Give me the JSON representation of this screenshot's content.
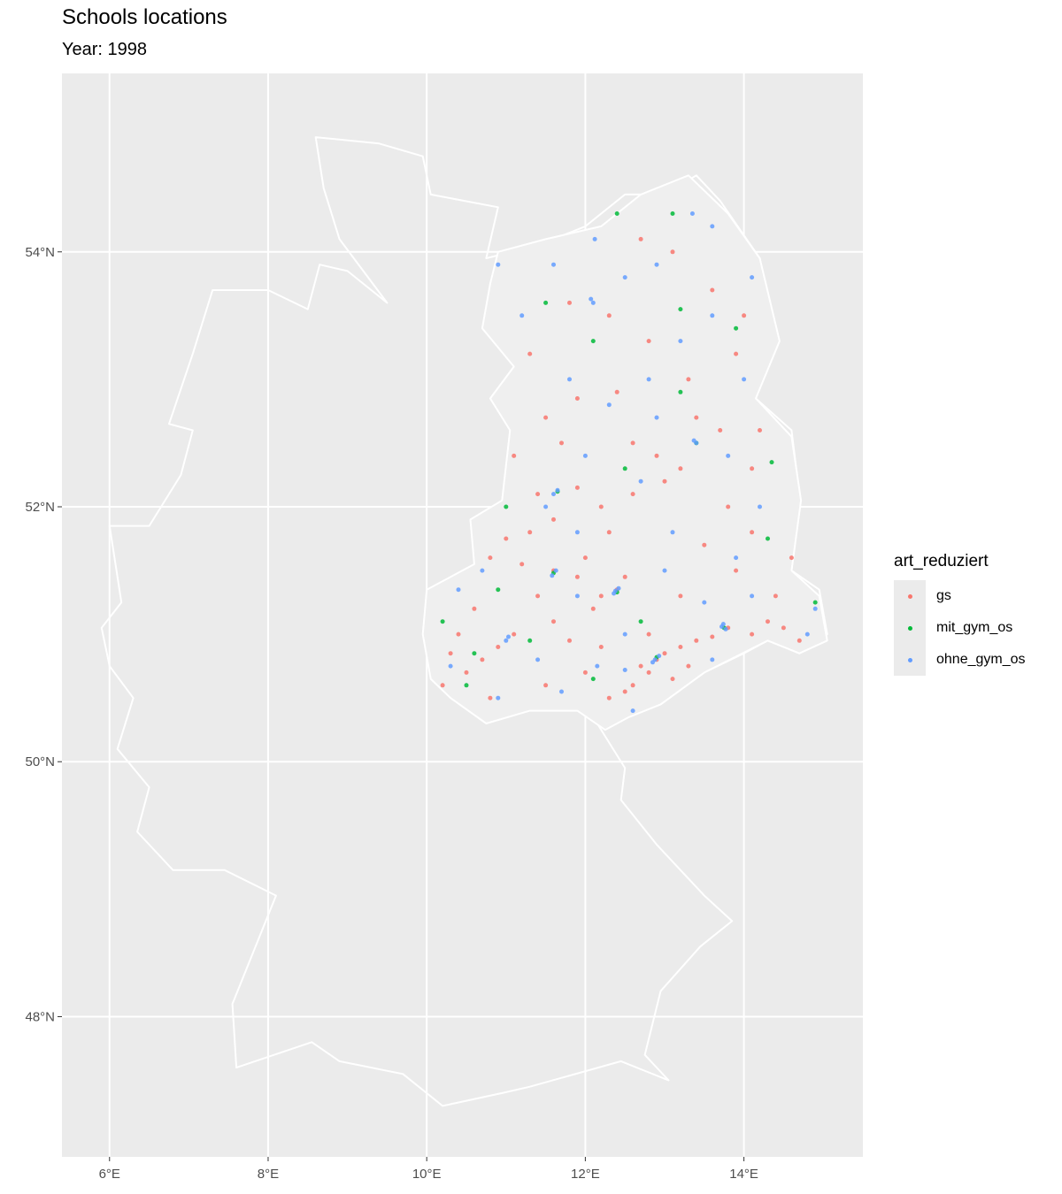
{
  "title": "Schools locations",
  "subtitle": "Year: 1998",
  "legend": {
    "title": "art_reduziert",
    "items": [
      {
        "key": "gs",
        "label": "gs",
        "color": "#F8766D"
      },
      {
        "key": "mit_gym_os",
        "label": "mit_gym_os",
        "color": "#00BA38"
      },
      {
        "key": "ohne_gym_os",
        "label": "ohne_gym_os",
        "color": "#619CFF"
      }
    ]
  },
  "chart_data": {
    "type": "scatter",
    "title": "Schools locations",
    "subtitle": "Year: 1998",
    "xlim": [
      5.4,
      15.5
    ],
    "ylim": [
      46.9,
      55.4
    ],
    "x_ticks": [
      {
        "value": 6,
        "label": "6°E"
      },
      {
        "value": 8,
        "label": "8°E"
      },
      {
        "value": 10,
        "label": "10°E"
      },
      {
        "value": 12,
        "label": "12°E"
      },
      {
        "value": 14,
        "label": "14°E"
      }
    ],
    "y_ticks": [
      {
        "value": 48,
        "label": "48°N"
      },
      {
        "value": 50,
        "label": "50°N"
      },
      {
        "value": 52,
        "label": "52°N"
      },
      {
        "value": 54,
        "label": "54°N"
      }
    ],
    "grid": true,
    "legend_position": "right",
    "background_color": "#EBEBEB",
    "grid_color": "#FFFFFF",
    "boundary_color": "#FFFFFF",
    "germany_outline": [
      [
        6.0,
        51.85
      ],
      [
        6.5,
        51.85
      ],
      [
        6.9,
        52.25
      ],
      [
        7.05,
        52.6
      ],
      [
        6.75,
        52.65
      ],
      [
        7.05,
        53.2
      ],
      [
        7.3,
        53.7
      ],
      [
        8.0,
        53.7
      ],
      [
        8.5,
        53.55
      ],
      [
        8.65,
        53.9
      ],
      [
        9.0,
        53.85
      ],
      [
        9.5,
        53.6
      ],
      [
        8.9,
        54.1
      ],
      [
        8.7,
        54.5
      ],
      [
        8.6,
        54.9
      ],
      [
        9.4,
        54.85
      ],
      [
        9.95,
        54.75
      ],
      [
        10.05,
        54.45
      ],
      [
        10.9,
        54.35
      ],
      [
        10.75,
        53.95
      ],
      [
        11.4,
        54.05
      ],
      [
        12.0,
        54.2
      ],
      [
        12.5,
        54.45
      ],
      [
        13.0,
        54.45
      ],
      [
        13.4,
        54.6
      ],
      [
        13.7,
        54.4
      ],
      [
        14.2,
        53.95
      ],
      [
        14.4,
        53.3
      ],
      [
        14.15,
        52.85
      ],
      [
        14.6,
        52.6
      ],
      [
        14.7,
        52.1
      ],
      [
        14.6,
        51.5
      ],
      [
        14.95,
        51.35
      ],
      [
        15.05,
        51.0
      ],
      [
        14.7,
        50.85
      ],
      [
        14.3,
        50.95
      ],
      [
        14.0,
        50.85
      ],
      [
        13.5,
        50.7
      ],
      [
        12.95,
        50.45
      ],
      [
        12.55,
        50.4
      ],
      [
        12.15,
        50.3
      ],
      [
        12.5,
        49.95
      ],
      [
        12.45,
        49.7
      ],
      [
        12.9,
        49.35
      ],
      [
        13.5,
        48.95
      ],
      [
        13.85,
        48.75
      ],
      [
        13.45,
        48.55
      ],
      [
        12.95,
        48.2
      ],
      [
        12.75,
        47.7
      ],
      [
        13.05,
        47.5
      ],
      [
        12.45,
        47.65
      ],
      [
        11.3,
        47.45
      ],
      [
        10.95,
        47.4
      ],
      [
        10.2,
        47.3
      ],
      [
        9.7,
        47.55
      ],
      [
        8.9,
        47.65
      ],
      [
        8.55,
        47.8
      ],
      [
        7.6,
        47.6
      ],
      [
        7.55,
        48.1
      ],
      [
        8.1,
        48.95
      ],
      [
        7.45,
        49.15
      ],
      [
        6.8,
        49.15
      ],
      [
        6.35,
        49.45
      ],
      [
        6.5,
        49.8
      ],
      [
        6.1,
        50.1
      ],
      [
        6.3,
        50.5
      ],
      [
        6.0,
        50.75
      ],
      [
        5.9,
        51.05
      ],
      [
        6.15,
        51.25
      ],
      [
        6.0,
        51.85
      ]
    ],
    "gdr_outline": [
      [
        10.9,
        54.0
      ],
      [
        11.5,
        54.1
      ],
      [
        12.2,
        54.2
      ],
      [
        12.7,
        54.45
      ],
      [
        13.3,
        54.6
      ],
      [
        13.8,
        54.3
      ],
      [
        14.2,
        53.95
      ],
      [
        14.45,
        53.3
      ],
      [
        14.15,
        52.85
      ],
      [
        14.6,
        52.55
      ],
      [
        14.72,
        52.05
      ],
      [
        14.6,
        51.5
      ],
      [
        14.95,
        51.3
      ],
      [
        15.05,
        50.95
      ],
      [
        14.7,
        50.85
      ],
      [
        14.3,
        50.95
      ],
      [
        13.5,
        50.7
      ],
      [
        12.95,
        50.45
      ],
      [
        12.55,
        50.35
      ],
      [
        12.25,
        50.25
      ],
      [
        11.9,
        50.4
      ],
      [
        11.3,
        50.4
      ],
      [
        10.75,
        50.3
      ],
      [
        10.3,
        50.5
      ],
      [
        10.05,
        50.65
      ],
      [
        9.95,
        51.0
      ],
      [
        10.0,
        51.35
      ],
      [
        10.6,
        51.55
      ],
      [
        10.55,
        51.9
      ],
      [
        10.95,
        52.05
      ],
      [
        11.05,
        52.6
      ],
      [
        10.8,
        52.85
      ],
      [
        11.1,
        53.1
      ],
      [
        10.7,
        53.4
      ],
      [
        10.8,
        53.75
      ],
      [
        10.9,
        54.0
      ]
    ],
    "series": [
      {
        "name": "gs",
        "color": "#F8766D",
        "points": [
          [
            12.9,
            50.8
          ],
          [
            12.8,
            50.7
          ],
          [
            13.0,
            50.85
          ],
          [
            12.7,
            50.75
          ],
          [
            12.6,
            50.6
          ],
          [
            13.2,
            50.9
          ],
          [
            13.4,
            50.95
          ],
          [
            13.6,
            50.98
          ],
          [
            13.8,
            51.05
          ],
          [
            14.1,
            51.0
          ],
          [
            14.3,
            51.1
          ],
          [
            14.5,
            51.05
          ],
          [
            14.7,
            50.95
          ],
          [
            12.4,
            51.35
          ],
          [
            12.2,
            51.3
          ],
          [
            12.5,
            51.45
          ],
          [
            12.1,
            51.2
          ],
          [
            11.9,
            51.45
          ],
          [
            11.6,
            51.5
          ],
          [
            11.4,
            51.3
          ],
          [
            11.1,
            51.0
          ],
          [
            10.9,
            50.9
          ],
          [
            10.7,
            50.8
          ],
          [
            10.5,
            50.7
          ],
          [
            10.3,
            50.85
          ],
          [
            11.6,
            51.1
          ],
          [
            11.8,
            50.95
          ],
          [
            12.0,
            50.7
          ],
          [
            12.3,
            50.5
          ],
          [
            12.5,
            50.55
          ],
          [
            13.1,
            50.65
          ],
          [
            13.3,
            50.75
          ],
          [
            11.3,
            51.8
          ],
          [
            11.6,
            51.9
          ],
          [
            11.0,
            51.75
          ],
          [
            11.9,
            52.15
          ],
          [
            11.4,
            52.1
          ],
          [
            10.8,
            51.6
          ],
          [
            11.2,
            51.55
          ],
          [
            12.9,
            52.4
          ],
          [
            13.2,
            52.3
          ],
          [
            13.0,
            52.2
          ],
          [
            12.6,
            52.5
          ],
          [
            13.7,
            52.6
          ],
          [
            14.1,
            52.3
          ],
          [
            13.8,
            52.0
          ],
          [
            12.6,
            52.1
          ],
          [
            12.2,
            52.0
          ],
          [
            13.5,
            51.7
          ],
          [
            14.1,
            51.8
          ],
          [
            13.9,
            51.5
          ],
          [
            14.4,
            51.3
          ],
          [
            13.2,
            51.3
          ],
          [
            12.8,
            51.0
          ],
          [
            12.2,
            50.9
          ],
          [
            12.0,
            51.6
          ],
          [
            12.3,
            51.8
          ],
          [
            11.7,
            52.5
          ],
          [
            11.5,
            52.7
          ],
          [
            11.9,
            52.85
          ],
          [
            12.4,
            52.9
          ],
          [
            13.3,
            53.0
          ],
          [
            13.9,
            53.2
          ],
          [
            12.3,
            53.5
          ],
          [
            11.8,
            53.6
          ],
          [
            13.6,
            53.7
          ],
          [
            14.0,
            53.5
          ],
          [
            13.1,
            54.0
          ],
          [
            12.7,
            54.1
          ],
          [
            11.3,
            53.2
          ],
          [
            10.6,
            51.2
          ],
          [
            10.4,
            51.0
          ],
          [
            10.2,
            50.6
          ],
          [
            10.8,
            50.5
          ],
          [
            11.5,
            50.6
          ],
          [
            14.6,
            51.6
          ],
          [
            14.2,
            52.6
          ],
          [
            11.1,
            52.4
          ],
          [
            12.8,
            53.3
          ],
          [
            13.4,
            52.7
          ]
        ]
      },
      {
        "name": "mit_gym_os",
        "color": "#00BA38",
        "points": [
          [
            12.9,
            50.82
          ],
          [
            12.4,
            51.33
          ],
          [
            13.75,
            51.05
          ],
          [
            11.6,
            51.48
          ],
          [
            11.65,
            52.12
          ],
          [
            13.4,
            52.5
          ],
          [
            12.1,
            53.3
          ],
          [
            13.2,
            53.55
          ],
          [
            12.4,
            54.3
          ],
          [
            13.1,
            54.3
          ],
          [
            10.6,
            50.85
          ],
          [
            11.3,
            50.95
          ],
          [
            10.9,
            51.35
          ],
          [
            14.3,
            51.75
          ],
          [
            14.35,
            52.35
          ],
          [
            12.5,
            52.3
          ],
          [
            13.9,
            53.4
          ],
          [
            11.5,
            53.6
          ],
          [
            12.1,
            50.65
          ],
          [
            14.9,
            51.25
          ],
          [
            10.2,
            51.1
          ],
          [
            13.2,
            52.9
          ],
          [
            11.0,
            52.0
          ],
          [
            12.7,
            51.1
          ],
          [
            10.5,
            50.6
          ]
        ]
      },
      {
        "name": "ohne_gym_os",
        "color": "#619CFF",
        "points": [
          [
            12.93,
            50.83
          ],
          [
            12.88,
            50.8
          ],
          [
            12.85,
            50.78
          ],
          [
            12.38,
            51.34
          ],
          [
            12.42,
            51.36
          ],
          [
            12.36,
            51.32
          ],
          [
            13.72,
            51.06
          ],
          [
            13.77,
            51.04
          ],
          [
            13.74,
            51.08
          ],
          [
            11.63,
            51.5
          ],
          [
            11.58,
            51.46
          ],
          [
            11.65,
            52.13
          ],
          [
            11.6,
            52.1
          ],
          [
            12.07,
            53.63
          ],
          [
            12.1,
            53.6
          ],
          [
            13.4,
            52.5
          ],
          [
            13.37,
            52.52
          ],
          [
            12.12,
            54.1
          ],
          [
            13.35,
            54.3
          ],
          [
            11.0,
            50.95
          ],
          [
            11.03,
            50.98
          ],
          [
            12.15,
            50.75
          ],
          [
            12.5,
            50.72
          ],
          [
            14.8,
            51.0
          ],
          [
            14.9,
            51.2
          ],
          [
            11.9,
            51.3
          ],
          [
            13.0,
            51.5
          ],
          [
            11.5,
            52.0
          ],
          [
            12.0,
            52.4
          ],
          [
            12.9,
            52.7
          ],
          [
            13.6,
            53.5
          ],
          [
            14.1,
            53.8
          ],
          [
            12.5,
            53.8
          ],
          [
            11.2,
            53.5
          ],
          [
            10.9,
            53.9
          ],
          [
            12.8,
            53.0
          ],
          [
            13.8,
            52.4
          ],
          [
            14.2,
            52.0
          ],
          [
            13.5,
            51.25
          ],
          [
            12.5,
            51.0
          ],
          [
            11.4,
            50.8
          ],
          [
            10.4,
            51.35
          ],
          [
            10.3,
            50.75
          ],
          [
            10.9,
            50.5
          ],
          [
            11.7,
            50.55
          ],
          [
            12.6,
            50.4
          ],
          [
            13.6,
            50.8
          ],
          [
            14.1,
            51.3
          ],
          [
            11.9,
            51.8
          ],
          [
            12.7,
            52.2
          ],
          [
            13.1,
            51.8
          ],
          [
            13.9,
            51.6
          ],
          [
            12.3,
            52.8
          ],
          [
            11.8,
            53.0
          ],
          [
            13.2,
            53.3
          ],
          [
            14.0,
            53.0
          ],
          [
            12.9,
            53.9
          ],
          [
            13.6,
            54.2
          ],
          [
            11.6,
            53.9
          ],
          [
            10.7,
            51.5
          ]
        ]
      }
    ]
  }
}
